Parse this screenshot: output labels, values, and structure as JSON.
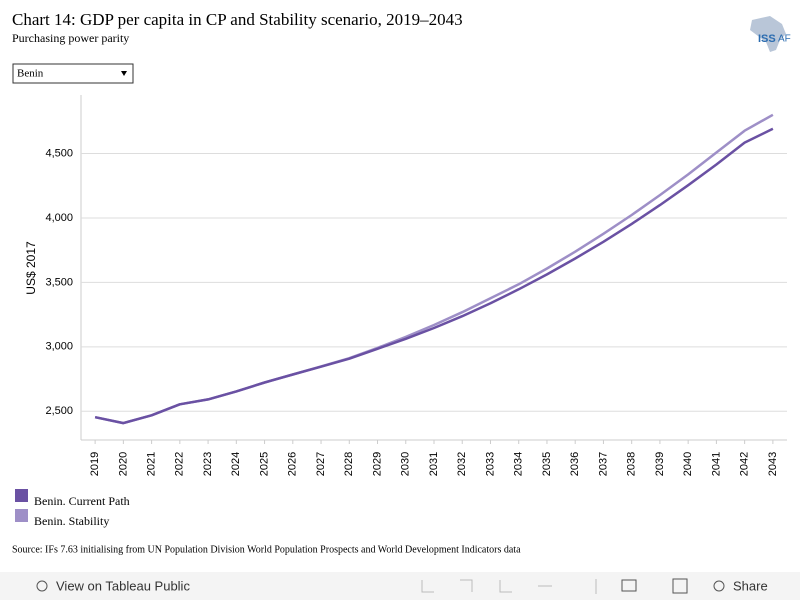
{
  "chart_data": {
    "type": "line",
    "title": "Chart 14: GDP per capita in CP and Stability scenario, 2019–2043",
    "subtitle": "Purchasing power parity",
    "y_label": "US$ 2017",
    "categories": [
      "2019",
      "2020",
      "2021",
      "2022",
      "2023",
      "2024",
      "2025",
      "2026",
      "2027",
      "2028",
      "2029",
      "2030",
      "2031",
      "2032",
      "2033",
      "2034",
      "2035",
      "2036",
      "2037",
      "2038",
      "2039",
      "2040",
      "2041",
      "2042",
      "2043"
    ],
    "series": [
      {
        "name": "Benin. Current Path",
        "color": "#6a51a3",
        "values": [
          2454,
          2408,
          2469,
          2554,
          2592,
          2654,
          2723,
          2785,
          2846,
          2908,
          2985,
          3062,
          3146,
          3238,
          3338,
          3446,
          3562,
          3685,
          3815,
          3954,
          4100,
          4254,
          4415,
          4585,
          4692
        ]
      },
      {
        "name": "Benin. Stability",
        "color": "#9e8fc7",
        "values": [
          2454,
          2408,
          2469,
          2554,
          2592,
          2654,
          2723,
          2785,
          2848,
          2912,
          2992,
          3077,
          3169,
          3269,
          3377,
          3485,
          3608,
          3738,
          3877,
          4023,
          4177,
          4338,
          4508,
          4677,
          4800
        ]
      }
    ],
    "ylim": [
      2277,
      4954
    ],
    "yticks": [
      {
        "value": 2500,
        "label": "2,500"
      },
      {
        "value": 3000,
        "label": "3,000"
      },
      {
        "value": 3500,
        "label": "3,500"
      },
      {
        "value": 4000,
        "label": "4,000"
      },
      {
        "value": 4500,
        "label": "4,500"
      }
    ],
    "grid": true,
    "source": "Source: IFs 7.63 initialising from UN Population Division World Population Prospects and World Development Indicators data"
  },
  "filter": {
    "selected": "Benin"
  },
  "logo": {
    "left": "ISS",
    "right": "AF"
  },
  "toolbar": {
    "view": "View on Tableau Public",
    "share": "Share"
  }
}
